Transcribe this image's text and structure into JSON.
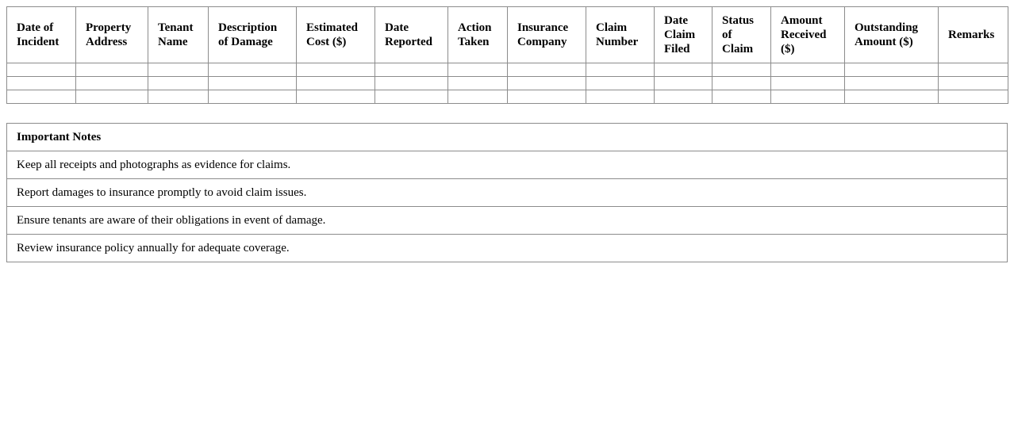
{
  "claims_table": {
    "headers": [
      "Date of Incident",
      "Property Address",
      "Tenant Name",
      "Description of Damage",
      "Estimated Cost ($)",
      "Date Reported",
      "Action Taken",
      "Insurance Company",
      "Claim Number",
      "Date Claim Filed",
      "Status of Claim",
      "Amount Received ($)",
      "Outstanding Amount ($)",
      "Remarks"
    ],
    "row_count": 3
  },
  "notes": {
    "title": "Important Notes",
    "items": [
      "Keep all receipts and photographs as evidence for claims.",
      "Report damages to insurance promptly to avoid claim issues.",
      "Ensure tenants are aware of their obligations in event of damage.",
      "Review insurance policy annually for adequate coverage."
    ]
  }
}
